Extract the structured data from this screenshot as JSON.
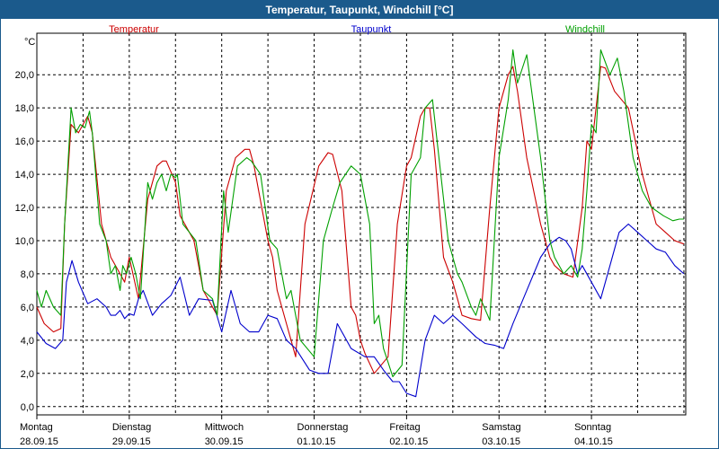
{
  "window": {
    "title": "Temperatur, Taupunkt, Windchill [°C]"
  },
  "colors": {
    "titlebar": "#1b5a8c",
    "temperatur": "#cc0000",
    "taupunkt": "#0000cc",
    "windchill": "#00a000",
    "grid": "#000000"
  },
  "chart_data": {
    "type": "line",
    "title": "Temperatur, Taupunkt, Windchill [°C]",
    "ylabel": "°C",
    "ylim": [
      -0.5,
      22.5
    ],
    "xlim": [
      0,
      7.02
    ],
    "grid": "dashed",
    "yticks": [
      "0,0",
      "2,0",
      "4,0",
      "6,0",
      "8,0",
      "10,0",
      "12,0",
      "14,0",
      "16,0",
      "18,0",
      "20,0"
    ],
    "days": [
      {
        "day": "Montag",
        "date": "28.09.15"
      },
      {
        "day": "Dienstag",
        "date": "29.09.15"
      },
      {
        "day": "Mittwoch",
        "date": "30.09.15"
      },
      {
        "day": "Donnerstag",
        "date": "01.10.15"
      },
      {
        "day": "Freitag",
        "date": "02.10.15"
      },
      {
        "day": "Samstag",
        "date": "03.10.15"
      },
      {
        "day": "Sonntag",
        "date": "04.10.15"
      }
    ],
    "series": [
      {
        "name": "Temperatur",
        "color": "#cc0000",
        "x": [
          0,
          0.08,
          0.18,
          0.26,
          0.3,
          0.37,
          0.45,
          0.5,
          0.55,
          0.6,
          0.7,
          0.8,
          0.9,
          0.95,
          1.0,
          1.1,
          1.2,
          1.3,
          1.36,
          1.4,
          1.5,
          1.55,
          1.6,
          1.7,
          1.8,
          1.95,
          2.05,
          2.15,
          2.25,
          2.3,
          2.35,
          2.4,
          2.5,
          2.55,
          2.6,
          2.7,
          2.8,
          2.9,
          3.05,
          3.15,
          3.2,
          3.3,
          3.4,
          3.45,
          3.5,
          3.55,
          3.65,
          3.8,
          3.9,
          4.0,
          4.05,
          4.15,
          4.2,
          4.25,
          4.3,
          4.4,
          4.5,
          4.55,
          4.6,
          4.7,
          4.8,
          4.9,
          5.0,
          5.1,
          5.15,
          5.2,
          5.3,
          5.45,
          5.55,
          5.6,
          5.7,
          5.8,
          5.9,
          5.95,
          6.0,
          6.05,
          6.1,
          6.15,
          6.25,
          6.4,
          6.55,
          6.7,
          6.8,
          6.9,
          7.0
        ],
        "y": [
          6.0,
          5.0,
          4.5,
          4.7,
          11.0,
          17.0,
          16.5,
          17.0,
          17.5,
          16.5,
          11.0,
          9.0,
          8.0,
          7.5,
          9.0,
          6.5,
          12.5,
          14.5,
          14.8,
          14.8,
          13.5,
          11.5,
          11.0,
          10.0,
          7.0,
          5.5,
          13.0,
          15.0,
          15.5,
          15.5,
          14.5,
          13.0,
          10.0,
          9.0,
          7.0,
          5.0,
          3.0,
          11.0,
          14.5,
          15.3,
          15.2,
          13.0,
          6.0,
          5.5,
          4.0,
          3.2,
          2.0,
          3.0,
          11.0,
          14.5,
          15.0,
          17.5,
          18.0,
          18.0,
          15.5,
          9.0,
          7.5,
          6.5,
          5.5,
          5.3,
          5.2,
          12.0,
          18.0,
          20.0,
          20.5,
          19.0,
          15.0,
          11.0,
          9.0,
          8.5,
          8.0,
          7.8,
          12.0,
          16.0,
          15.5,
          18.0,
          20.5,
          20.4,
          19.0,
          18.0,
          14.0,
          11.0,
          10.5,
          10.0,
          9.8
        ]
      },
      {
        "name": "Taupunkt",
        "color": "#0000cc",
        "x": [
          0,
          0.1,
          0.2,
          0.28,
          0.32,
          0.38,
          0.45,
          0.55,
          0.65,
          0.75,
          0.8,
          0.85,
          0.9,
          0.95,
          1.0,
          1.05,
          1.1,
          1.15,
          1.25,
          1.35,
          1.45,
          1.55,
          1.65,
          1.75,
          1.9,
          2.0,
          2.1,
          2.2,
          2.3,
          2.4,
          2.5,
          2.6,
          2.7,
          2.8,
          2.95,
          3.05,
          3.15,
          3.25,
          3.4,
          3.55,
          3.65,
          3.75,
          3.85,
          3.92,
          4.0,
          4.1,
          4.2,
          4.3,
          4.4,
          4.5,
          4.6,
          4.75,
          4.85,
          4.95,
          5.05,
          5.15,
          5.3,
          5.45,
          5.55,
          5.65,
          5.72,
          5.78,
          5.85,
          5.9,
          6.0,
          6.1,
          6.2,
          6.3,
          6.4,
          6.5,
          6.6,
          6.7,
          6.8,
          6.9,
          7.0
        ],
        "y": [
          4.5,
          3.8,
          3.5,
          4.0,
          7.5,
          8.8,
          7.5,
          6.2,
          6.5,
          6.0,
          5.5,
          5.5,
          5.8,
          5.3,
          5.6,
          5.5,
          6.5,
          7.0,
          5.5,
          6.2,
          6.7,
          7.8,
          5.5,
          6.5,
          6.4,
          4.5,
          7.0,
          5.0,
          4.5,
          4.5,
          5.5,
          5.3,
          4.0,
          3.5,
          2.2,
          2.0,
          2.0,
          5.0,
          3.5,
          3.0,
          3.0,
          2.2,
          1.5,
          1.5,
          0.8,
          0.6,
          4.0,
          5.5,
          5.0,
          5.5,
          5.0,
          4.2,
          3.8,
          3.7,
          3.5,
          5.0,
          7.0,
          9.0,
          9.8,
          10.2,
          10.0,
          9.5,
          8.0,
          8.5,
          7.5,
          6.5,
          8.5,
          10.5,
          11.0,
          10.5,
          10.0,
          9.5,
          9.3,
          8.5,
          8.0
        ]
      },
      {
        "name": "Windchill",
        "color": "#00a000",
        "x": [
          0,
          0.05,
          0.1,
          0.18,
          0.26,
          0.3,
          0.37,
          0.42,
          0.47,
          0.52,
          0.57,
          0.6,
          0.68,
          0.75,
          0.8,
          0.85,
          0.9,
          0.93,
          0.97,
          1.02,
          1.07,
          1.12,
          1.2,
          1.25,
          1.3,
          1.35,
          1.4,
          1.45,
          1.5,
          1.52,
          1.58,
          1.65,
          1.72,
          1.8,
          1.9,
          1.95,
          2.02,
          2.07,
          2.12,
          2.17,
          2.27,
          2.32,
          2.42,
          2.52,
          2.6,
          2.65,
          2.7,
          2.75,
          2.85,
          3.0,
          3.1,
          3.2,
          3.28,
          3.4,
          3.5,
          3.6,
          3.65,
          3.7,
          3.75,
          3.78,
          3.85,
          3.95,
          4.05,
          4.15,
          4.2,
          4.28,
          4.35,
          4.45,
          4.55,
          4.6,
          4.7,
          4.75,
          4.8,
          4.9,
          5.0,
          5.1,
          5.15,
          5.2,
          5.3,
          5.45,
          5.55,
          5.6,
          5.7,
          5.78,
          5.85,
          5.9,
          5.95,
          6.0,
          6.05,
          6.1,
          6.2,
          6.28,
          6.35,
          6.45,
          6.55,
          6.65,
          6.78,
          6.88,
          6.95,
          7.0
        ],
        "y": [
          7.0,
          6.0,
          7.0,
          6.0,
          5.5,
          11.0,
          18.0,
          16.5,
          17.0,
          16.8,
          17.8,
          16.5,
          11.0,
          10.0,
          8.0,
          8.5,
          7.0,
          8.5,
          8.0,
          9.0,
          8.0,
          6.5,
          13.5,
          12.5,
          13.5,
          14.0,
          13.0,
          14.0,
          13.8,
          14.0,
          11.0,
          10.5,
          10.0,
          7.0,
          6.5,
          5.5,
          13.0,
          10.5,
          12.5,
          14.5,
          15.0,
          14.8,
          14.0,
          10.0,
          9.5,
          8.0,
          6.5,
          7.0,
          4.0,
          3.0,
          10.0,
          12.0,
          13.5,
          14.5,
          14.0,
          11.0,
          5.0,
          5.5,
          3.5,
          3.0,
          1.8,
          2.5,
          14.0,
          15.0,
          18.0,
          18.5,
          15.0,
          10.0,
          8.0,
          7.5,
          6.0,
          5.5,
          6.5,
          5.2,
          15.0,
          18.5,
          21.5,
          19.5,
          21.2,
          15.0,
          10.0,
          9.0,
          8.0,
          8.5,
          7.8,
          9.5,
          13.0,
          17.0,
          16.5,
          21.5,
          20.0,
          21.0,
          19.0,
          15.0,
          13.0,
          12.0,
          11.5,
          11.2,
          11.3,
          11.3
        ]
      }
    ]
  }
}
